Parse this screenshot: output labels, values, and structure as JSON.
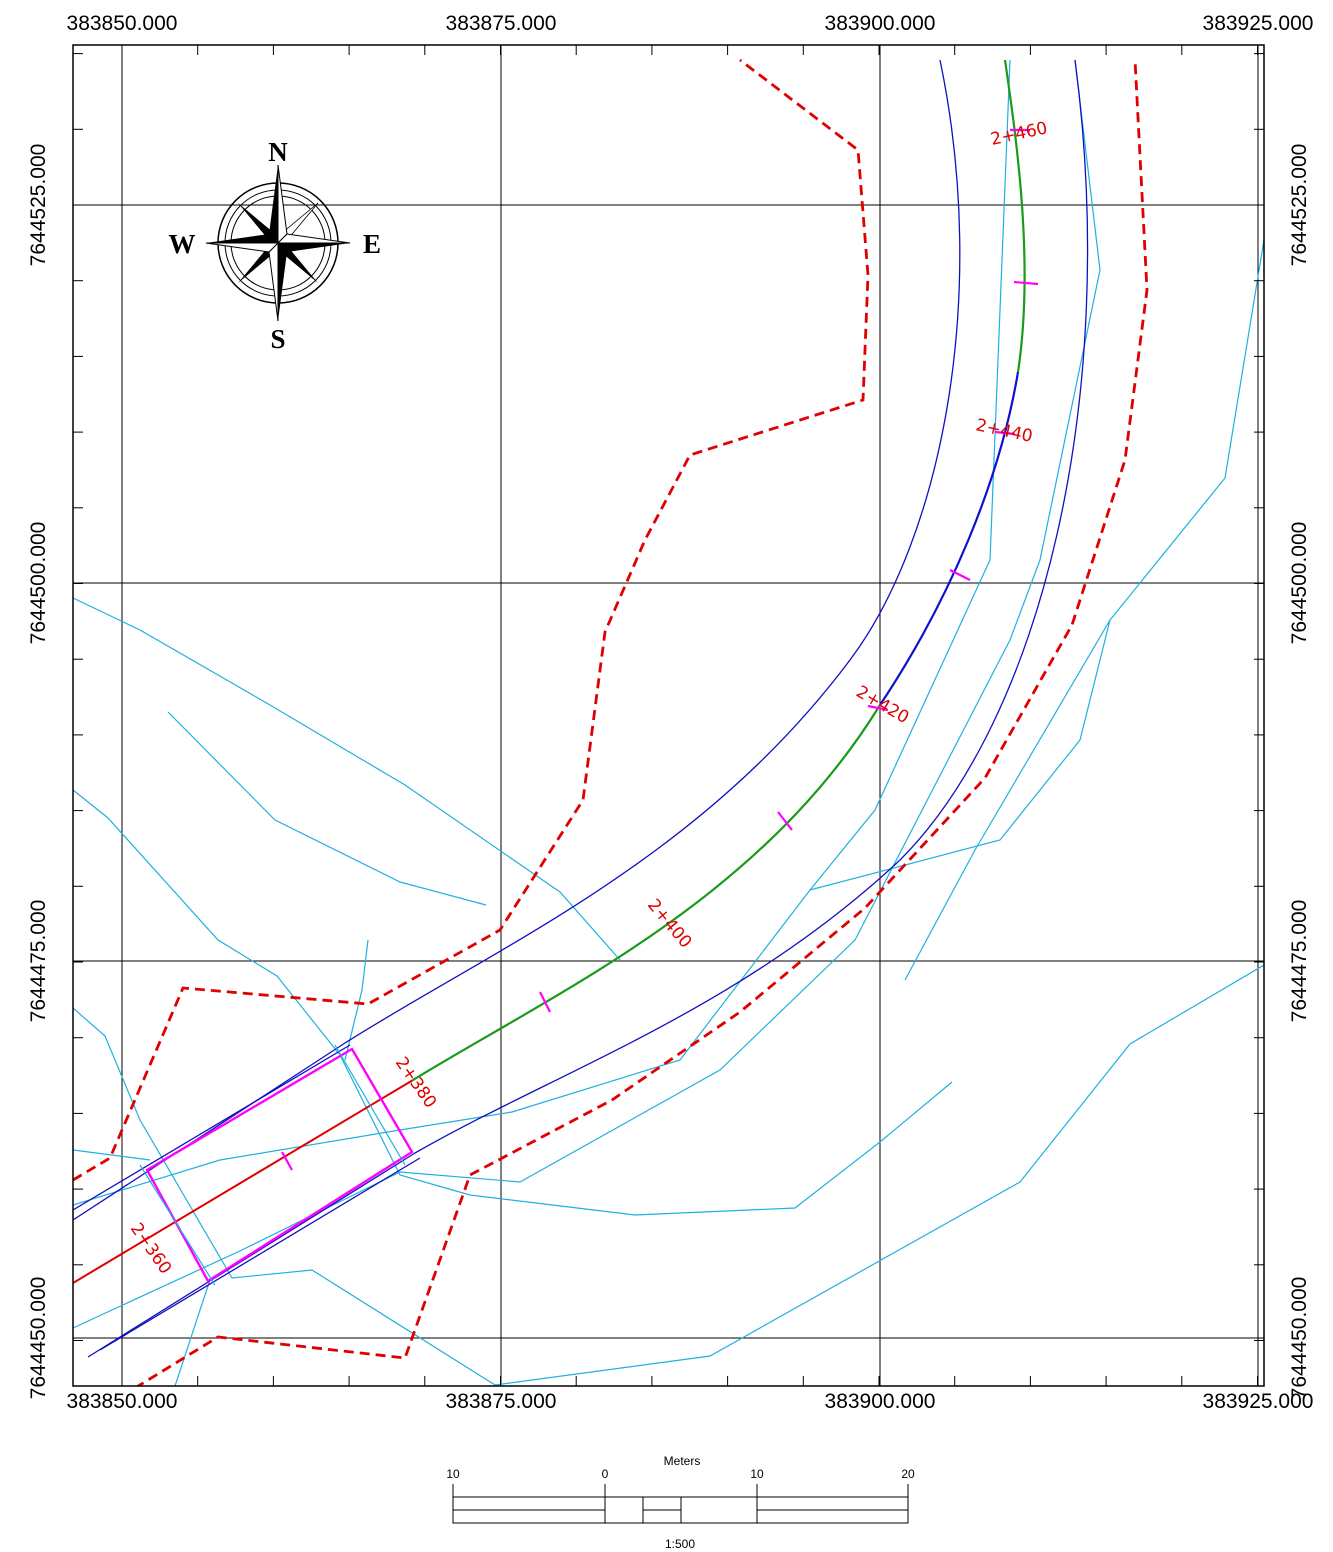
{
  "map": {
    "x_coords": [
      "383850.000",
      "383875.000",
      "383900.000",
      "383925.000"
    ],
    "y_coords": [
      "7644525.000",
      "7644500.000",
      "7644475.000",
      "7644450.000"
    ],
    "stations": [
      "2+360",
      "2+380",
      "2+400",
      "2+420",
      "2+440",
      "2+460"
    ],
    "compass": {
      "north": "N",
      "south": "S",
      "east": "E",
      "west": "W"
    },
    "scale_bar": {
      "title": "Meters",
      "ticks": [
        "10",
        "0",
        "10",
        "20"
      ],
      "ratio": "1:500"
    },
    "colors": {
      "frame": "#000000",
      "boundary_dashed": "#e00000",
      "road_edges": "#1010c0",
      "centerline": "#1a9a1a",
      "contours": "#20b0e0",
      "culvert": "#ff00ff",
      "label": "#e00000"
    }
  }
}
